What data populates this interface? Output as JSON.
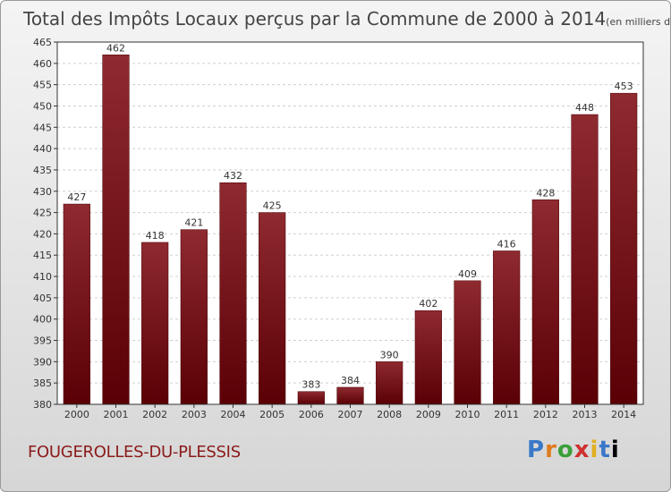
{
  "chart_data": {
    "type": "bar",
    "title": "Total des Impôts Locaux perçus par la Commune de 2000 à 2014",
    "subtitle": "(en milliers d'€)",
    "categories": [
      "2000",
      "2001",
      "2002",
      "2003",
      "2004",
      "2005",
      "2006",
      "2007",
      "2008",
      "2009",
      "2010",
      "2011",
      "2012",
      "2013",
      "2014"
    ],
    "values": [
      427,
      462,
      418,
      421,
      432,
      425,
      383,
      384,
      390,
      402,
      409,
      416,
      428,
      448,
      453
    ],
    "ylim": [
      380,
      465
    ],
    "yticks": [
      380,
      385,
      390,
      395,
      400,
      405,
      410,
      415,
      420,
      425,
      430,
      435,
      440,
      445,
      450,
      455,
      460,
      465
    ],
    "grid": true,
    "bar_color": "#7a1016"
  },
  "commune": "FOUGEROLLES-DU-PLESSIS",
  "logo": "Proxiti"
}
